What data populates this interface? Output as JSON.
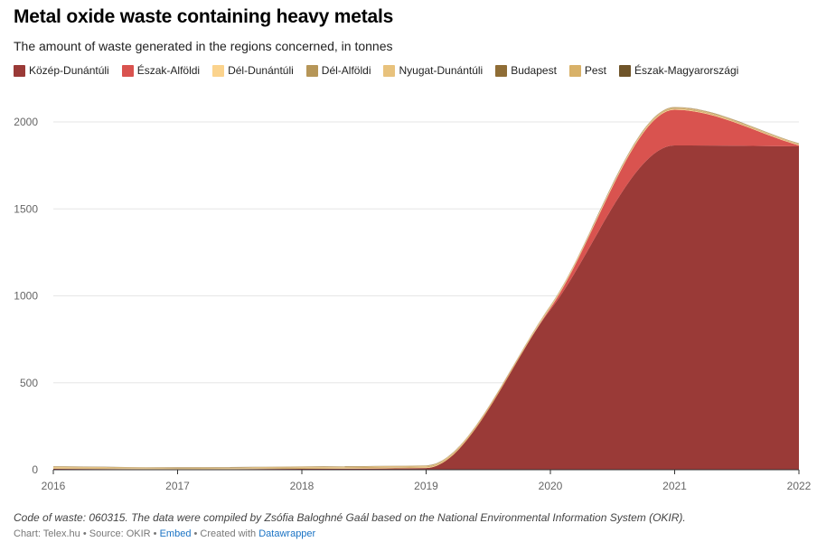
{
  "header": {
    "title": "Metal oxide waste containing heavy metals",
    "subtitle": "The amount of waste generated in the regions concerned, in tonnes"
  },
  "notes": "Code of waste: 060315. The data were compiled by Zsófia Baloghné Gaál based on the National Environmental Information System (OKIR).",
  "footer": {
    "chart_by": "Chart: Telex.hu",
    "separator1": " • ",
    "source": "Source: OKIR",
    "separator2": " • ",
    "embed": "Embed",
    "separator3": " • ",
    "created_with": "Created with ",
    "tool": "Datawrapper"
  },
  "chart_data": {
    "type": "area",
    "stacked": true,
    "title": "Metal oxide waste containing heavy metals",
    "subtitle": "The amount of waste generated in the regions concerned, in tonnes",
    "x": [
      2016,
      2017,
      2018,
      2019,
      2020,
      2021,
      2022
    ],
    "ylim": [
      0,
      2000
    ],
    "yticks": [
      0,
      500,
      1000,
      1500,
      2000
    ],
    "grid": true,
    "legend_position": "top",
    "series": [
      {
        "name": "Közép-Dunántúli",
        "color": "#9a3a37",
        "values": [
          5,
          3,
          5,
          10,
          920,
          1865,
          1860
        ]
      },
      {
        "name": "Észak-Alföldi",
        "color": "#d9534f",
        "values": [
          0,
          0,
          0,
          0,
          10,
          205,
          5
        ]
      },
      {
        "name": "Dél-Dunántúli",
        "color": "#fbd38d",
        "values": [
          4,
          3,
          3,
          4,
          4,
          4,
          3
        ]
      },
      {
        "name": "Dél-Alföldi",
        "color": "#b69658",
        "values": [
          3,
          2,
          3,
          3,
          3,
          3,
          2
        ]
      },
      {
        "name": "Nyugat-Dunántúli",
        "color": "#e8c27d",
        "values": [
          4,
          2,
          4,
          4,
          4,
          4,
          3
        ]
      },
      {
        "name": "Budapest",
        "color": "#8f6d36",
        "values": [
          1,
          1,
          1,
          1,
          1,
          2,
          1
        ]
      },
      {
        "name": "Pest",
        "color": "#d8b168",
        "values": [
          2,
          2,
          2,
          2,
          2,
          2,
          2
        ]
      },
      {
        "name": "Észak-Magyarországi",
        "color": "#6f5429",
        "values": [
          1,
          1,
          1,
          1,
          1,
          1,
          1
        ]
      }
    ]
  }
}
